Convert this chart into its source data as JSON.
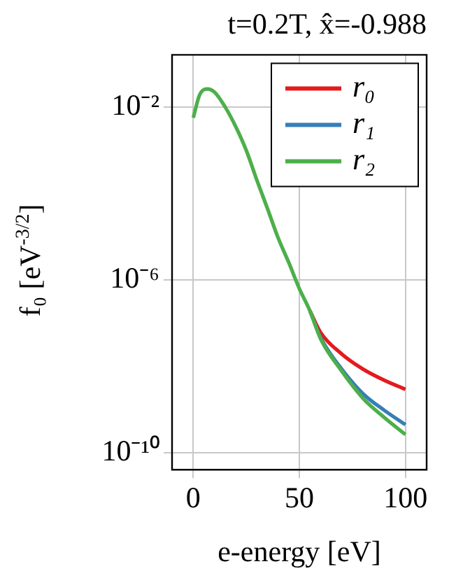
{
  "chart_data": {
    "type": "line",
    "title": "t=0.2T, x̂=-0.988",
    "xlabel": "e-energy [eV]",
    "ylabel": "f₀ [eV$^{-3/2}$]",
    "x": [
      0,
      3,
      6.5,
      10,
      15,
      20,
      25,
      30,
      35,
      40,
      45,
      50,
      55,
      60,
      70,
      80,
      90,
      100
    ],
    "series": [
      {
        "name": "r₀",
        "color": "#e41a1c",
        "values": [
          null,
          null,
          null,
          null,
          null,
          null,
          null,
          null,
          null,
          null,
          null,
          null,
          1.9e-07,
          6e-08,
          1.9e-08,
          8.5e-09,
          4.7e-09,
          2.9e-09
        ]
      },
      {
        "name": "r₁",
        "color": "#377eb8",
        "values": [
          null,
          null,
          null,
          null,
          null,
          null,
          null,
          null,
          null,
          null,
          null,
          null,
          1.9e-07,
          4.6e-08,
          8.5e-09,
          2.3e-09,
          9.5e-10,
          4.4e-10
        ]
      },
      {
        "name": "r₂",
        "color": "#4daf4a",
        "values": [
          0.0056,
          0.019,
          0.026,
          0.022,
          0.01,
          0.0035,
          0.00098,
          0.0002,
          4.4e-05,
          9.3e-06,
          2.5e-06,
          6.2e-07,
          1.9e-07,
          4.3e-08,
          7.6e-09,
          1.8e-09,
          6.5e-10,
          2.6e-10
        ]
      }
    ],
    "xlim": [
      -10,
      110
    ],
    "xticks": [
      0,
      50,
      100
    ],
    "ylim": [
      4e-11,
      0.16
    ],
    "yticks": [
      {
        "value": 1e-10,
        "label": "10⁻¹⁰"
      },
      {
        "value": 1e-06,
        "label": "10⁻⁶"
      },
      {
        "value": 0.01,
        "label": "10⁻²"
      }
    ],
    "log": "y",
    "grid": true,
    "legend": "top right",
    "marker": "none",
    "line_style": "solid"
  }
}
